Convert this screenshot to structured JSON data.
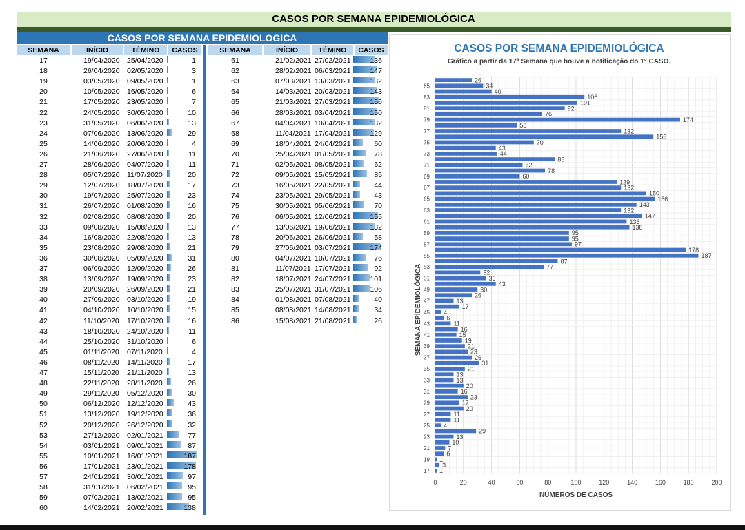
{
  "header": {
    "main_title": "CASOS POR SEMANA EPIDEMIOLÓGICA"
  },
  "table": {
    "title": "CASOS POR SEMANA EPIDEMIOLOGICA",
    "headers": [
      "SEMANA",
      "INÍCIO",
      "TÉMINO",
      "CASOS"
    ],
    "rows": [
      [
        "17",
        "19/04/2020",
        "25/04/2020",
        1
      ],
      [
        "18",
        "26/04/2020",
        "02/05/2020",
        3
      ],
      [
        "19",
        "03/05/2020",
        "09/05/2020",
        1
      ],
      [
        "20",
        "10/05/2020",
        "16/05/2020",
        6
      ],
      [
        "21",
        "17/05/2020",
        "23/05/2020",
        7
      ],
      [
        "22",
        "24/05/2020",
        "30/05/2020",
        10
      ],
      [
        "23",
        "31/05/2020",
        "06/06/2020",
        13
      ],
      [
        "24",
        "07/06/2020",
        "13/06/2020",
        29
      ],
      [
        "25",
        "14/06/2020",
        "20/06/2020",
        4
      ],
      [
        "26",
        "21/06/2020",
        "27/06/2020",
        11
      ],
      [
        "27",
        "28/06/2020",
        "04/07/2020",
        11
      ],
      [
        "28",
        "05/07/2020",
        "11/07/2020",
        20
      ],
      [
        "29",
        "12/07/2020",
        "18/07/2020",
        17
      ],
      [
        "30",
        "19/07/2020",
        "25/07/2020",
        23
      ],
      [
        "31",
        "26/07/2020",
        "01/08/2020",
        16
      ],
      [
        "32",
        "02/08/2020",
        "08/08/2020",
        20
      ],
      [
        "33",
        "09/08/2020",
        "15/08/2020",
        13
      ],
      [
        "34",
        "16/08/2020",
        "22/08/2020",
        13
      ],
      [
        "35",
        "23/08/2020",
        "29/08/2020",
        21
      ],
      [
        "36",
        "30/08/2020",
        "05/09/2020",
        31
      ],
      [
        "37",
        "06/09/2020",
        "12/09/2020",
        26
      ],
      [
        "38",
        "13/09/2020",
        "19/09/2020",
        23
      ],
      [
        "39",
        "20/09/2020",
        "26/09/2020",
        21
      ],
      [
        "40",
        "27/09/2020",
        "03/10/2020",
        19
      ],
      [
        "41",
        "04/10/2020",
        "10/10/2020",
        15
      ],
      [
        "42",
        "11/10/2020",
        "17/10/2020",
        16
      ],
      [
        "43",
        "18/10/2020",
        "24/10/2020",
        11
      ],
      [
        "44",
        "25/10/2020",
        "31/10/2020",
        6
      ],
      [
        "45",
        "01/11/2020",
        "07/11/2020",
        4
      ],
      [
        "46",
        "08/11/2020",
        "14/11/2020",
        17
      ],
      [
        "47",
        "15/11/2020",
        "21/11/2020",
        13
      ],
      [
        "48",
        "22/11/2020",
        "28/11/2020",
        26
      ],
      [
        "49",
        "29/11/2020",
        "05/12/2020",
        30
      ],
      [
        "50",
        "06/12/2020",
        "12/12/2020",
        43
      ],
      [
        "51",
        "13/12/2020",
        "19/12/2020",
        36
      ],
      [
        "52",
        "20/12/2020",
        "26/12/2020",
        32
      ],
      [
        "53",
        "27/12/2020",
        "02/01/2021",
        77
      ],
      [
        "54",
        "03/01/2021",
        "09/01/2021",
        87
      ],
      [
        "55",
        "10/01/2021",
        "16/01/2021",
        187
      ],
      [
        "56",
        "17/01/2021",
        "23/01/2021",
        178
      ],
      [
        "57",
        "24/01/2021",
        "30/01/2021",
        97
      ],
      [
        "58",
        "31/01/2021",
        "06/02/2021",
        95
      ],
      [
        "59",
        "07/02/2021",
        "13/02/2021",
        95
      ],
      [
        "60",
        "14/02/2021",
        "20/02/2021",
        138
      ],
      [
        "61",
        "21/02/2021",
        "27/02/2021",
        136
      ],
      [
        "62",
        "28/02/2021",
        "06/03/2021",
        147
      ],
      [
        "63",
        "07/03/2021",
        "13/03/2021",
        132
      ],
      [
        "64",
        "14/03/2021",
        "20/03/2021",
        143
      ],
      [
        "65",
        "21/03/2021",
        "27/03/2021",
        156
      ],
      [
        "66",
        "28/03/2021",
        "03/04/2021",
        150
      ],
      [
        "67",
        "04/04/2021",
        "10/04/2021",
        132
      ],
      [
        "68",
        "11/04/2021",
        "17/04/2021",
        129
      ],
      [
        "69",
        "18/04/2021",
        "24/04/2021",
        60
      ],
      [
        "70",
        "25/04/2021",
        "01/05/2021",
        78
      ],
      [
        "71",
        "02/05/2021",
        "08/05/2021",
        62
      ],
      [
        "72",
        "09/05/2021",
        "15/05/2021",
        85
      ],
      [
        "73",
        "16/05/2021",
        "22/05/2021",
        44
      ],
      [
        "74",
        "23/05/2021",
        "29/05/2021",
        43
      ],
      [
        "75",
        "30/05/2021",
        "05/06/2021",
        70
      ],
      [
        "76",
        "06/05/2021",
        "12/06/2021",
        155
      ],
      [
        "77",
        "13/06/2021",
        "19/06/2021",
        132
      ],
      [
        "78",
        "20/06/2021",
        "26/06/2021",
        58
      ],
      [
        "79",
        "27/06/2021",
        "03/07/2021",
        174
      ],
      [
        "80",
        "04/07/2021",
        "10/07/2021",
        76
      ],
      [
        "81",
        "11/07/2021",
        "17/07/2021",
        92
      ],
      [
        "82",
        "18/07/2021",
        "24/07/2021",
        101
      ],
      [
        "83",
        "25/07/2021",
        "31/07/2021",
        106
      ],
      [
        "84",
        "01/08/2021",
        "07/08/2021",
        40
      ],
      [
        "85",
        "08/08/2021",
        "14/08/2021",
        34
      ],
      [
        "86",
        "15/08/2021",
        "21/08/2021",
        26
      ]
    ]
  },
  "chart_data": {
    "type": "bar",
    "orientation": "horizontal",
    "title": "CASOS POR SEMANA EPIDEMIOLÓGICA",
    "subtitle": "Gráfico a partir da 17ª Semana que houve a notificação do 1° CASO.",
    "xlabel": "NÚMEROS DE CASOS",
    "ylabel": "SEMANA EPIDEMIOLÓGICA",
    "xlim": [
      0,
      200
    ],
    "x_ticks": [
      0,
      20,
      40,
      60,
      80,
      100,
      120,
      140,
      160,
      180,
      200
    ],
    "y_tick_labels": [
      "17",
      "19",
      "21",
      "23",
      "25",
      "27",
      "29",
      "31",
      "33",
      "35",
      "37",
      "39",
      "41",
      "43",
      "45",
      "47",
      "49",
      "51",
      "53",
      "55",
      "57",
      "59",
      "61",
      "63",
      "65",
      "67",
      "69",
      "71",
      "73",
      "75",
      "77",
      "79",
      "81",
      "83",
      "85"
    ],
    "grid": true,
    "bar_color": "#4472c4",
    "categories": [
      "17",
      "18",
      "19",
      "20",
      "21",
      "22",
      "23",
      "24",
      "25",
      "26",
      "27",
      "28",
      "29",
      "30",
      "31",
      "32",
      "33",
      "34",
      "35",
      "36",
      "37",
      "38",
      "39",
      "40",
      "41",
      "42",
      "43",
      "44",
      "45",
      "46",
      "47",
      "48",
      "49",
      "50",
      "51",
      "52",
      "53",
      "54",
      "55",
      "56",
      "57",
      "58",
      "59",
      "60",
      "61",
      "62",
      "63",
      "64",
      "65",
      "66",
      "67",
      "68",
      "69",
      "70",
      "71",
      "72",
      "73",
      "74",
      "75",
      "76",
      "77",
      "78",
      "79",
      "80",
      "81",
      "82",
      "83",
      "84",
      "85",
      "86"
    ],
    "values": [
      1,
      3,
      1,
      6,
      7,
      10,
      13,
      29,
      4,
      11,
      11,
      20,
      17,
      23,
      16,
      20,
      13,
      13,
      21,
      31,
      26,
      23,
      21,
      19,
      15,
      16,
      11,
      6,
      4,
      17,
      13,
      26,
      30,
      43,
      36,
      32,
      77,
      87,
      187,
      178,
      97,
      95,
      95,
      138,
      136,
      147,
      132,
      143,
      156,
      150,
      132,
      129,
      60,
      78,
      62,
      85,
      44,
      43,
      70,
      155,
      132,
      58,
      174,
      76,
      92,
      101,
      106,
      40,
      34,
      26
    ]
  }
}
